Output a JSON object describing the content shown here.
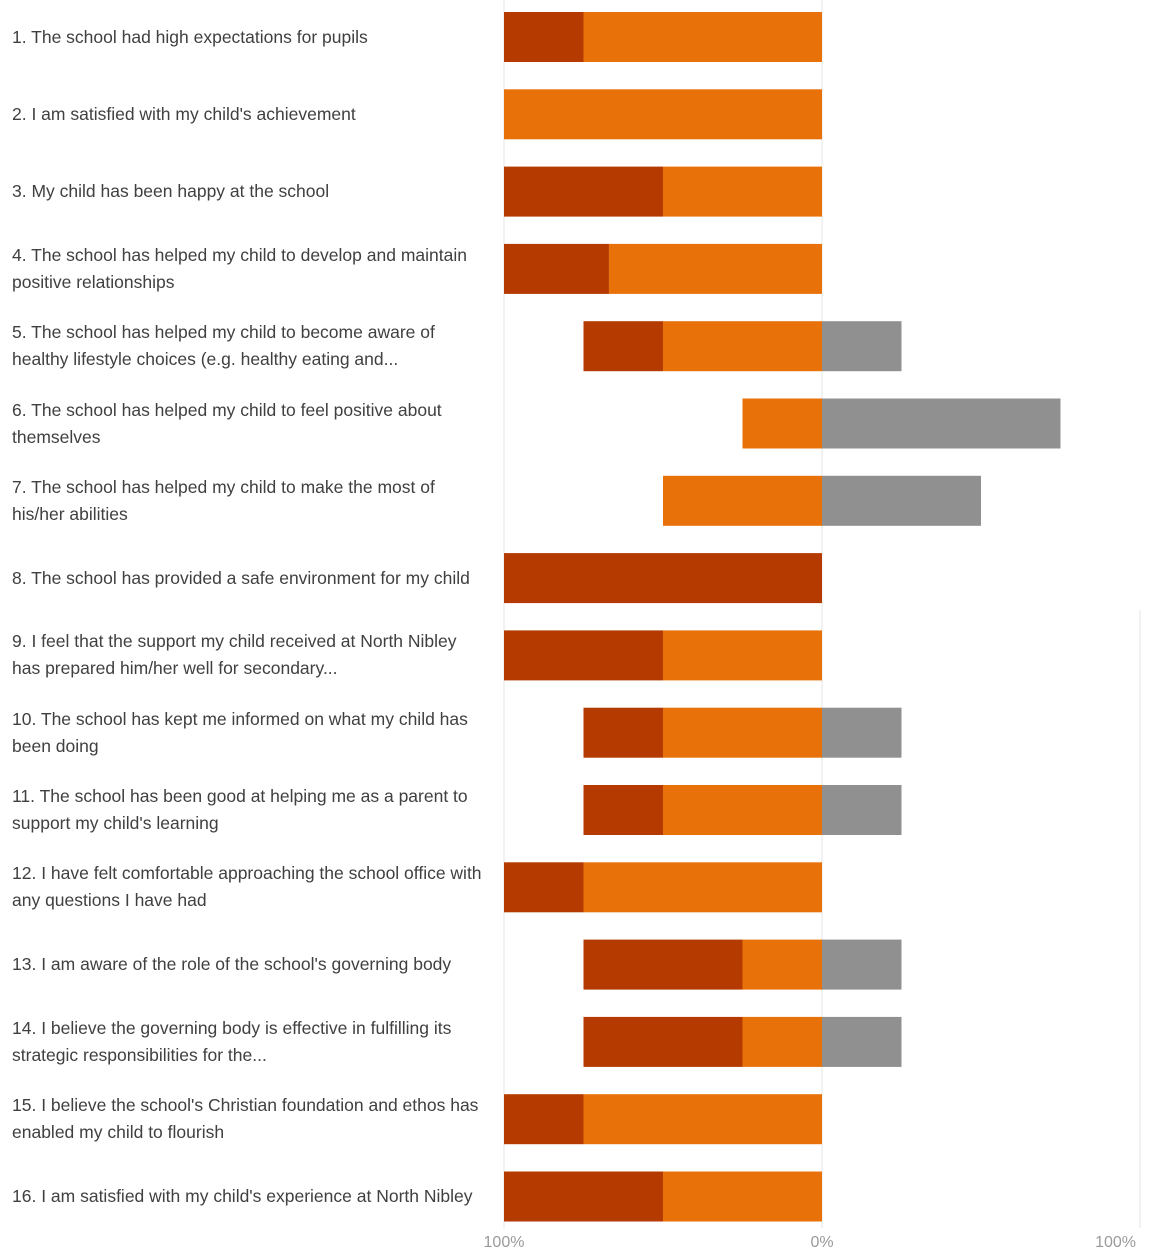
{
  "colors": {
    "agree": "#b53a00",
    "strongly_agree": "#e8710a",
    "other": "#909090",
    "gridline": "#e6e6e6"
  },
  "chart_data": {
    "type": "bar",
    "orientation": "horizontal",
    "stacked": "diverging",
    "categories": [
      "1. The school had high expectations for pupils",
      "2. I am satisfied with my child's achievement",
      "3. My child has been happy at the school",
      "4. The school has helped my child to develop and maintain positive relationships",
      "5. The school has helped my child to become aware of healthy lifestyle choices (e.g. healthy eating and...",
      "6. The school has helped my child to feel positive about themselves",
      "7. The school has helped my child to make the most of his/her abilities",
      "8. The school has provided a safe environment for my child",
      "9. I feel that the support my child received at North Nibley has prepared him/her well for secondary...",
      "10. The school has kept me informed on what my child has been doing",
      "11. The school has been good at helping me as a parent to support my child's learning",
      "12. I have felt comfortable approaching the school office with any questions I have had",
      "13. I am aware of the role of the school's governing body",
      "14. I believe the governing body is effective in fulfilling its strategic responsibilities for the...",
      "15. I believe the school's Christian foundation and ethos has enabled my child to flourish",
      "16. I am satisfied with my child's experience at North Nibley"
    ],
    "series": [
      {
        "key": "agree",
        "color": "#b53a00",
        "side": "negative",
        "values": [
          25,
          0,
          50,
          33,
          25,
          0,
          0,
          100,
          50,
          25,
          25,
          25,
          50,
          50,
          25,
          50
        ]
      },
      {
        "key": "strongly_agree",
        "color": "#e8710a",
        "side": "negative",
        "values": [
          75,
          100,
          50,
          67,
          50,
          25,
          50,
          0,
          50,
          50,
          50,
          75,
          25,
          25,
          75,
          50
        ]
      },
      {
        "key": "other",
        "color": "#909090",
        "side": "positive",
        "values": [
          0,
          0,
          0,
          0,
          25,
          75,
          50,
          0,
          0,
          25,
          25,
          0,
          25,
          25,
          0,
          0
        ]
      }
    ],
    "x_ticks": [
      "100%",
      "0%",
      "100%"
    ],
    "xlim": [
      -100,
      100
    ],
    "grid": true
  }
}
